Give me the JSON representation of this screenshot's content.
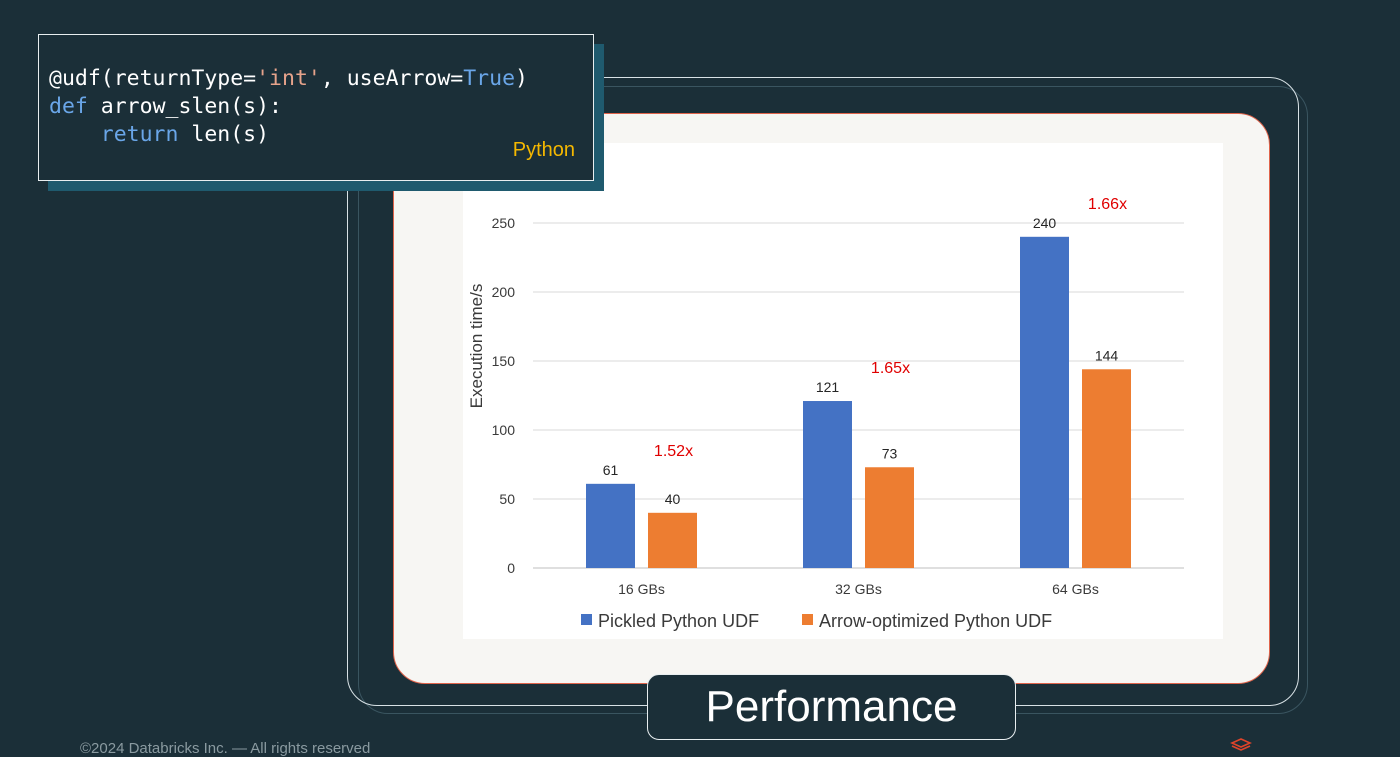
{
  "code": {
    "line1": {
      "a": "@udf(returnType=",
      "b": "'int'",
      "c": ", useArrow=",
      "d": "True",
      "e": ")"
    },
    "line2": {
      "kw": "def",
      "rest": " arrow_slen(s):"
    },
    "line3": {
      "indent": "    ",
      "kw": "return",
      "rest": " len(s)"
    },
    "language": "Python"
  },
  "slide_title": "Performance",
  "footer": "©2024 Databricks Inc. — All rights reserved",
  "logo_icon": "databricks-logo-icon",
  "colors": {
    "pickled": "#4472c4",
    "arrow": "#ed7d31",
    "speedup": "#e00000"
  },
  "chart_data": {
    "type": "bar",
    "categories": [
      "16 GBs",
      "32 GBs",
      "64 GBs"
    ],
    "series": [
      {
        "name": "Pickled Python UDF",
        "values": [
          61,
          121,
          240
        ]
      },
      {
        "name": "Arrow-optimized Python UDF",
        "values": [
          40,
          73,
          144
        ]
      }
    ],
    "data_labels": {
      "pickled": [
        "61",
        "121",
        "240"
      ],
      "arrow": [
        "40",
        "73",
        "144"
      ]
    },
    "annotations": [
      "1.52x",
      "1.65x",
      "1.66x"
    ],
    "xlabel": "",
    "ylabel": "Execution time/s",
    "ylim": [
      0,
      250
    ],
    "yticks": [
      0,
      50,
      100,
      150,
      200,
      250
    ],
    "yticks_text": [
      "0",
      "50",
      "100",
      "150",
      "200",
      "250"
    ],
    "grid": true,
    "legend_position": "bottom"
  }
}
